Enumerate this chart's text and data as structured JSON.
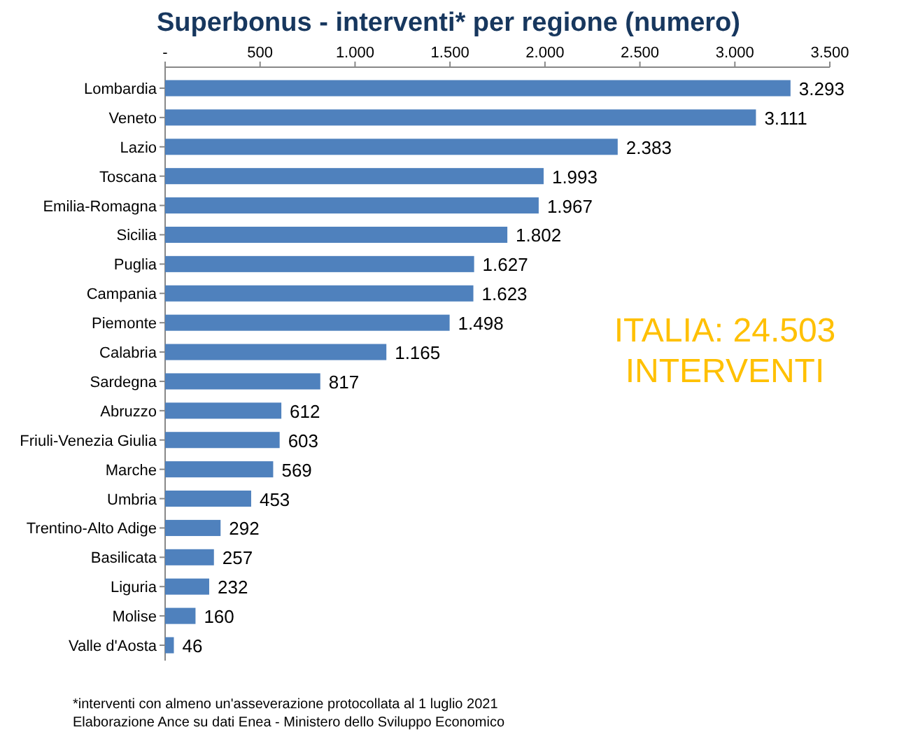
{
  "chart_data": {
    "type": "bar",
    "orientation": "horizontal",
    "title": "Superbonus - interventi* per regione (numero)",
    "categories": [
      "Lombardia",
      "Veneto",
      "Lazio",
      "Toscana",
      "Emilia-Romagna",
      "Sicilia",
      "Puglia",
      "Campania",
      "Piemonte",
      "Calabria",
      "Sardegna",
      "Abruzzo",
      "Friuli-Venezia Giulia",
      "Marche",
      "Umbria",
      "Trentino-Alto Adige",
      "Basilicata",
      "Liguria",
      "Molise",
      "Valle d'Aosta"
    ],
    "values": [
      3293,
      3111,
      2383,
      1993,
      1967,
      1802,
      1627,
      1623,
      1498,
      1165,
      817,
      612,
      603,
      569,
      453,
      292,
      257,
      232,
      160,
      46
    ],
    "value_labels": [
      "3.293",
      "3.111",
      "2.383",
      "1.993",
      "1.967",
      "1.802",
      "1.627",
      "1.623",
      "1.498",
      "1.165",
      "817",
      "612",
      "603",
      "569",
      "453",
      "292",
      "257",
      "232",
      "160",
      "46"
    ],
    "color": "#4f81bd",
    "xlim": [
      0,
      3500
    ],
    "xticks": [
      {
        "value": 0,
        "label": "-"
      },
      500,
      {
        "value": 1000,
        "label": "1.000"
      },
      {
        "value": 1500,
        "label": "1.500"
      },
      {
        "value": 2000,
        "label": "2.000"
      },
      {
        "value": 2500,
        "label": "2.500"
      },
      {
        "value": 3000,
        "label": "3.000"
      },
      {
        "value": 3500,
        "label": "3.500"
      }
    ],
    "annotations": [
      "ITALIA: 24.503",
      "INTERVENTI",
      "*interventi con almeno un'asseverazione protocollata al 1 luglio 2021",
      "Elaborazione Ance su dati Enea - Ministero dello Sviluppo Economico"
    ]
  }
}
